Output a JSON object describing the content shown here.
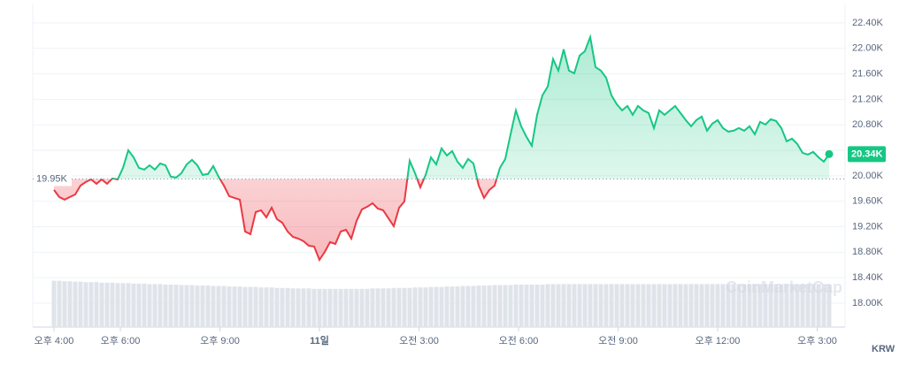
{
  "chart_data": {
    "type": "line",
    "x": [
      16,
      16.16,
      16.32,
      16.48,
      16.64,
      16.8,
      16.96,
      17.12,
      17.28,
      17.44,
      17.6,
      17.76,
      17.92,
      18.08,
      18.24,
      18.4,
      18.56,
      18.72,
      18.88,
      19.04,
      19.2,
      19.36,
      19.52,
      19.68,
      19.84,
      20,
      20.16,
      20.32,
      20.48,
      20.64,
      20.8,
      20.96,
      21.12,
      21.28,
      21.44,
      21.6,
      21.76,
      21.92,
      22.08,
      22.24,
      22.4,
      22.56,
      22.72,
      22.88,
      23.04,
      23.2,
      23.36,
      23.52,
      23.68,
      23.84,
      24,
      24.16,
      24.32,
      24.48,
      24.64,
      24.8,
      24.96,
      25.12,
      25.28,
      25.44,
      25.6,
      25.76,
      25.92,
      26.08,
      26.24,
      26.4,
      26.56,
      26.72,
      26.88,
      27.04,
      27.2,
      27.36,
      27.52,
      27.68,
      27.84,
      28,
      28.16,
      28.32,
      28.48,
      28.64,
      28.8,
      28.96,
      29.12,
      29.28,
      29.44,
      29.6,
      29.76,
      29.92,
      30.08,
      30.24,
      30.4,
      30.56,
      30.72,
      30.88,
      31.04,
      31.2,
      31.36,
      31.52,
      31.68,
      31.84,
      32,
      32.16,
      32.32,
      32.48,
      32.64,
      32.8,
      32.96,
      33.12,
      33.28,
      33.44,
      33.6,
      33.76,
      33.92,
      34.08,
      34.24,
      34.4,
      34.56,
      34.72,
      34.88,
      35.04,
      35.2,
      35.36,
      35.52,
      35.68,
      35.84,
      36,
      36.16,
      36.32,
      36.48,
      36.64,
      36.8,
      36.96,
      37.12,
      37.28,
      37.44,
      37.6,
      37.76,
      37.92,
      38.08,
      38.24,
      38.4,
      38.56,
      38.72,
      38.88,
      39.04,
      39.2,
      39.36
    ],
    "values": [
      19777,
      19666,
      19624,
      19666,
      19707,
      19846,
      19902,
      19943,
      19874,
      19943,
      19874,
      19957,
      19943,
      20124,
      20401,
      20290,
      20124,
      20096,
      20165,
      20096,
      20193,
      20165,
      19985,
      19971,
      20041,
      20179,
      20249,
      20165,
      20013,
      20027,
      20152,
      19985,
      19846,
      19680,
      19652,
      19624,
      19125,
      19083,
      19430,
      19458,
      19347,
      19499,
      19319,
      19263,
      19125,
      19041,
      19014,
      18972,
      18902,
      18889,
      18680,
      18805,
      18958,
      18930,
      19125,
      19152,
      19014,
      19291,
      19472,
      19513,
      19569,
      19485,
      19458,
      19333,
      19208,
      19499,
      19596,
      20235,
      20041,
      19819,
      20013,
      20290,
      20179,
      20429,
      20318,
      20388,
      20221,
      20124,
      20263,
      20193,
      19846,
      19652,
      19777,
      19846,
      20124,
      20263,
      20651,
      21026,
      20776,
      20610,
      20471,
      20957,
      21262,
      21401,
      21831,
      21651,
      21984,
      21651,
      21609,
      21886,
      21956,
      22178,
      21706,
      21651,
      21540,
      21262,
      21123,
      21026,
      21095,
      20957,
      21095,
      21026,
      20984,
      20748,
      21026,
      20957,
      21026,
      21095,
      20984,
      20873,
      20776,
      20873,
      20929,
      20707,
      20818,
      20873,
      20748,
      20693,
      20707,
      20748,
      20707,
      20776,
      20651,
      20846,
      20804,
      20887,
      20859,
      20748,
      20540,
      20582,
      20499,
      20360,
      20332,
      20374,
      20290,
      20221,
      20340
    ],
    "colors": {
      "up": "#16c784",
      "down": "#ea3943"
    },
    "baseline": {
      "value": 19950,
      "label": "19.95K"
    },
    "last_price": {
      "value": 20340,
      "label": "20.34K"
    },
    "volume": {
      "color": "#dfe3ea",
      "values": [
        97,
        97,
        96,
        96,
        95,
        95,
        94,
        94,
        94,
        93,
        93,
        93,
        92,
        92,
        92,
        91,
        91,
        91,
        90,
        90,
        90,
        89,
        89,
        89,
        88,
        88,
        88,
        87,
        87,
        87,
        86,
        86,
        86,
        85,
        85,
        85,
        84,
        84,
        84,
        83,
        83,
        83,
        82,
        82,
        82,
        81,
        81,
        81,
        81,
        80,
        80,
        80,
        80,
        80,
        80,
        80,
        80,
        80,
        80,
        80,
        81,
        81,
        81,
        81,
        82,
        82,
        82,
        82,
        83,
        83,
        83,
        84,
        84,
        84,
        85,
        85,
        85,
        86,
        86,
        86,
        87,
        87,
        87,
        88,
        88,
        88,
        88,
        89,
        89,
        89,
        89,
        89,
        89,
        90,
        90,
        90,
        90,
        90,
        90,
        90,
        90,
        90,
        90,
        90,
        90,
        90,
        90,
        90,
        90,
        90,
        90,
        90,
        90,
        90,
        90,
        90,
        90,
        90,
        90,
        90,
        90,
        90,
        90,
        90,
        90,
        90,
        90,
        90,
        90,
        90,
        90,
        90,
        90,
        90,
        90,
        90,
        90,
        90,
        90,
        90,
        90,
        90,
        90,
        90,
        90,
        90,
        89
      ]
    },
    "volume_ylim": [
      0,
      100
    ],
    "xlim": [
      15.36,
      39.84
    ],
    "xticks": [
      {
        "value": 16,
        "label": "오후 4:00"
      },
      {
        "value": 18,
        "label": "오후 6:00"
      },
      {
        "value": 21,
        "label": "오후 9:00"
      },
      {
        "value": 24,
        "label": "11일"
      },
      {
        "value": 27,
        "label": "오전 3:00"
      },
      {
        "value": 30,
        "label": "오전 6:00"
      },
      {
        "value": 33,
        "label": "오전 9:00"
      },
      {
        "value": 36,
        "label": "오후 12:00"
      },
      {
        "value": 39,
        "label": "오후 3:00"
      }
    ],
    "ylim": [
      17625,
      22690
    ],
    "yticks": [
      {
        "value": 18000,
        "label": "18.00K"
      },
      {
        "value": 18400,
        "label": "18.40K"
      },
      {
        "value": 18800,
        "label": "18.80K"
      },
      {
        "value": 19200,
        "label": "19.20K"
      },
      {
        "value": 19600,
        "label": "19.60K"
      },
      {
        "value": 20000,
        "label": "20.00K"
      },
      {
        "value": 20400,
        "label": "20.40K"
      },
      {
        "value": 20800,
        "label": "20.80K"
      },
      {
        "value": 21200,
        "label": "21.20K"
      },
      {
        "value": 21600,
        "label": "21.60K"
      },
      {
        "value": 22000,
        "label": "22.00K"
      },
      {
        "value": 22400,
        "label": "22.40K"
      }
    ],
    "grid": true,
    "currency": "KRW",
    "watermark": "CoinMarketCap"
  }
}
